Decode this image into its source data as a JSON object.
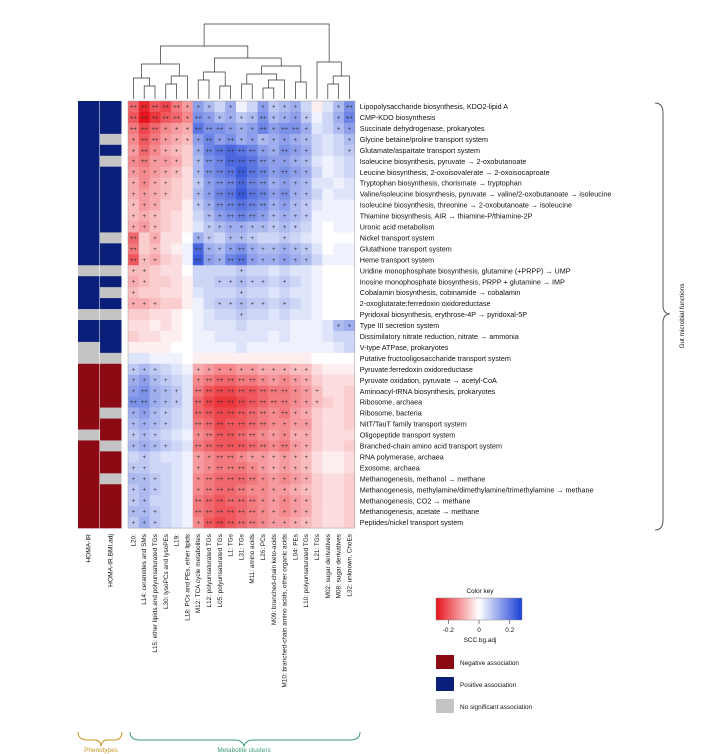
{
  "chart_data": {
    "type": "heatmap",
    "rows": [
      "Lipopolysaccharide biosynthesis, KDO2-lipid A",
      "CMP-KDO biosynthesis",
      "Succinate dehydrogenase, prokaryotes",
      "Glycine betaine/proline transport system",
      "Glutamate/aspartate transport system",
      "Isoleucine biosynthesis, pyruvate → 2-oxobutanoate",
      "Leucine biosynthesis, 2-oxoisovalerate → 2-oxoisocaproate",
      "Tryptophan biosynthesis, chorismate → tryptophan",
      "Valine/isoleucine biosynthesis, pyruvate → valine/2-oxobutanoate → isoleucine",
      "Isoleucine biosynthesis, threonine → 2-oxobutanoate → isoleucine",
      "Thiamine biosynthesis, AIR → thiamine-P/thiamine-2P",
      "Uronic acid metabolism",
      "Nickel transport system",
      "Glutathione transport system",
      "Heme transport system",
      "Uridine monophosphate biosynthesis, glutamine (+PRPP) → UMP",
      "Inosine monophosphate biosynthesis, PRPP + glutamine → IMP",
      "Cobalamin biosynthesis, cobinamide → cobalamin",
      "2-oxoglutarate:ferredoxin oxidoreductase",
      "Pyridoxal biosynthesis, erythrose-4P → pyridoxal-5P",
      "Type III secretion system",
      "Dissimilatory nitrate reduction, nitrate → ammonia",
      "V-type ATPase, prokaryotes",
      "Putative fructooligosaccharide transport system",
      "Pyruvate:ferredoxin oxidoreductase",
      "Pyruvate oxidation, pyruvate → acetyl-CoA",
      "Aminoacyl-tRNA biosynthesis, prokaryotes",
      "Ribosome, archaea",
      "Ribosome, bacteria",
      "NitT/TauT family transport system",
      "Oligopeptide transport system",
      "Branched-chain amino acid transport system",
      "RNA polymerase, archaea",
      "Exosome, archaea",
      "Methanogenesis, methanol → methane",
      "Methanogenesis, methylamine/dimethylamine/trimethylamine → methane",
      "Methanogenesis, CO2 → methane",
      "Methanogenesis, acetate → methane",
      "Peptides/nickel transport system"
    ],
    "columns": [
      "L20:",
      "L14: ceramides and SMs",
      "L15: ether lipids and polyunsaturated TGs",
      "L30: lysoPCs and lysoPEs",
      "L19:",
      "L18: PCs and PEs, ether lipids",
      "M12: TCA cycle metabolites",
      "L12: polyunsaturated TGs",
      "L05: polyunsaturated TGs",
      "L1: TGs",
      "L31: TGs",
      "M11: amino acids",
      "L26: PCs",
      "M09: branched-chain keto-acids",
      "M10: branched-chain amino acids, other organic acids",
      "L04: PEs",
      "L10: polyunsaturated TGs",
      "L21: TGs",
      "M02: sugar derivatives",
      "M08: sugar derivatives",
      "L32: unknown, ChoEs"
    ],
    "phenotypes": [
      "HOMA-IR",
      "HOMA-IR.BMI.adj"
    ],
    "phenotype_association": [
      [
        "Positive",
        "Positive"
      ],
      [
        "Positive",
        "Positive"
      ],
      [
        "Positive",
        "Positive"
      ],
      [
        "Positive",
        "No significant association"
      ],
      [
        "Positive",
        "Positive"
      ],
      [
        "Positive",
        "No significant association"
      ],
      [
        "Positive",
        "Positive"
      ],
      [
        "Positive",
        "Positive"
      ],
      [
        "Positive",
        "Positive"
      ],
      [
        "Positive",
        "Positive"
      ],
      [
        "Positive",
        "Positive"
      ],
      [
        "Positive",
        "Positive"
      ],
      [
        "Positive",
        "No significant association"
      ],
      [
        "Positive",
        "Positive"
      ],
      [
        "Positive",
        "Positive"
      ],
      [
        "No significant association",
        "No significant association"
      ],
      [
        "Positive",
        "Positive"
      ],
      [
        "Positive",
        "No significant association"
      ],
      [
        "Positive",
        "Positive"
      ],
      [
        "No significant association",
        "No significant association"
      ],
      [
        "Positive",
        "Positive"
      ],
      [
        "Positive",
        "Positive"
      ],
      [
        "No significant association",
        "Positive"
      ],
      [
        "No significant association",
        "No significant association"
      ],
      [
        "Negative",
        "Negative"
      ],
      [
        "Negative",
        "Negative"
      ],
      [
        "Negative",
        "Negative"
      ],
      [
        "Negative",
        "Negative"
      ],
      [
        "Negative",
        "No significant association"
      ],
      [
        "Negative",
        "Negative"
      ],
      [
        "No significant association",
        "Negative"
      ],
      [
        "Negative",
        "No significant association"
      ],
      [
        "Negative",
        "Negative"
      ],
      [
        "Negative",
        "Negative"
      ],
      [
        "Negative",
        "No significant association"
      ],
      [
        "Negative",
        "Negative"
      ],
      [
        "Negative",
        "Negative"
      ],
      [
        "Negative",
        "Negative"
      ],
      [
        "Negative",
        "Negative"
      ]
    ],
    "values_scc": [
      [
        -0.18,
        -0.26,
        -0.2,
        -0.22,
        -0.16,
        -0.12,
        0.14,
        0.1,
        0.06,
        0.12,
        0.02,
        0.06,
        0.14,
        0.08,
        0.1,
        0.12,
        0.06,
        -0.02,
        0.04,
        0.1,
        0.16
      ],
      [
        -0.2,
        -0.28,
        -0.24,
        -0.2,
        -0.18,
        -0.14,
        0.16,
        0.14,
        0.1,
        0.12,
        0.08,
        0.1,
        0.16,
        0.1,
        0.12,
        0.14,
        0.08,
        0.02,
        0.06,
        0.12,
        0.18
      ],
      [
        -0.16,
        -0.22,
        -0.18,
        -0.14,
        -0.12,
        -0.1,
        0.2,
        0.16,
        0.16,
        0.14,
        0.12,
        0.14,
        0.18,
        0.14,
        0.16,
        0.16,
        0.12,
        0.04,
        0.06,
        0.1,
        0.14
      ],
      [
        -0.14,
        -0.2,
        -0.16,
        -0.12,
        -0.1,
        -0.08,
        0.14,
        0.18,
        0.14,
        0.16,
        0.12,
        0.14,
        0.1,
        0.12,
        0.14,
        0.12,
        0.1,
        0.06,
        0.04,
        0.06,
        0.1
      ],
      [
        -0.12,
        -0.18,
        -0.14,
        -0.1,
        -0.08,
        -0.06,
        0.12,
        0.18,
        0.2,
        0.22,
        0.2,
        0.18,
        0.14,
        0.12,
        0.16,
        0.14,
        0.12,
        0.06,
        0.04,
        0.06,
        0.08
      ],
      [
        -0.14,
        -0.16,
        -0.12,
        -0.12,
        -0.1,
        -0.06,
        0.1,
        0.16,
        0.18,
        0.22,
        0.22,
        0.2,
        0.16,
        0.14,
        0.14,
        0.12,
        0.1,
        0.04,
        0.02,
        0.04,
        0.06
      ],
      [
        -0.12,
        -0.14,
        -0.12,
        -0.1,
        -0.08,
        -0.04,
        0.1,
        0.16,
        0.18,
        0.2,
        0.24,
        0.2,
        0.18,
        0.14,
        0.16,
        0.14,
        0.12,
        0.06,
        0.02,
        0.04,
        0.06
      ],
      [
        -0.1,
        -0.14,
        -0.1,
        -0.08,
        -0.06,
        -0.04,
        0.08,
        0.14,
        0.16,
        0.18,
        0.22,
        0.18,
        0.16,
        0.12,
        0.14,
        0.12,
        0.1,
        0.04,
        0.04,
        0.02,
        0.04
      ],
      [
        -0.1,
        -0.12,
        -0.1,
        -0.08,
        -0.06,
        -0.04,
        0.1,
        0.14,
        0.18,
        0.2,
        0.24,
        0.2,
        0.18,
        0.14,
        0.16,
        0.12,
        0.1,
        0.06,
        0.02,
        0.04,
        0.04
      ],
      [
        -0.08,
        -0.12,
        -0.1,
        -0.06,
        -0.06,
        -0.02,
        0.08,
        0.12,
        0.16,
        0.18,
        0.2,
        0.18,
        0.16,
        0.12,
        0.14,
        0.1,
        0.08,
        0.04,
        0.02,
        0.02,
        0.02
      ],
      [
        -0.08,
        -0.1,
        -0.08,
        -0.06,
        -0.04,
        -0.02,
        0.06,
        0.1,
        0.14,
        0.16,
        0.18,
        0.16,
        0.14,
        0.1,
        0.12,
        0.1,
        0.08,
        0.02,
        0.02,
        0.02,
        0.02
      ],
      [
        -0.1,
        -0.12,
        -0.08,
        -0.06,
        -0.04,
        -0.02,
        0.04,
        0.08,
        0.1,
        0.12,
        0.12,
        0.1,
        0.1,
        0.08,
        0.1,
        0.08,
        0.06,
        0.02,
        0.0,
        0.02,
        0.02
      ],
      [
        -0.18,
        -0.06,
        -0.1,
        -0.04,
        -0.04,
        0.0,
        0.12,
        0.08,
        0.06,
        0.1,
        0.1,
        0.08,
        0.06,
        0.06,
        0.08,
        0.06,
        0.04,
        0.02,
        0.0,
        0.0,
        0.0
      ],
      [
        -0.16,
        -0.06,
        -0.08,
        -0.04,
        -0.02,
        0.02,
        0.22,
        0.12,
        0.1,
        0.14,
        0.16,
        0.12,
        0.1,
        0.1,
        0.12,
        0.1,
        0.08,
        0.04,
        0.0,
        0.02,
        0.02
      ],
      [
        -0.2,
        -0.08,
        -0.1,
        -0.06,
        -0.04,
        0.02,
        0.24,
        0.14,
        0.12,
        0.18,
        0.2,
        0.14,
        0.12,
        0.12,
        0.14,
        0.12,
        0.1,
        0.06,
        0.02,
        0.02,
        0.02
      ],
      [
        -0.08,
        -0.08,
        -0.06,
        -0.04,
        -0.04,
        0.0,
        0.06,
        0.06,
        0.06,
        0.06,
        0.08,
        0.06,
        0.06,
        0.04,
        0.06,
        0.04,
        0.04,
        0.02,
        0.0,
        0.0,
        0.0
      ],
      [
        -0.1,
        -0.08,
        -0.06,
        -0.06,
        -0.04,
        -0.02,
        0.06,
        0.06,
        0.08,
        0.08,
        0.1,
        0.08,
        0.08,
        0.06,
        0.08,
        0.06,
        0.04,
        0.02,
        0.0,
        0.0,
        0.0
      ],
      [
        -0.08,
        -0.06,
        -0.06,
        -0.04,
        -0.04,
        -0.02,
        0.04,
        0.06,
        0.06,
        0.06,
        0.08,
        0.06,
        0.06,
        0.04,
        0.06,
        0.04,
        0.04,
        0.02,
        0.0,
        0.0,
        0.0
      ],
      [
        -0.1,
        -0.1,
        -0.08,
        -0.06,
        -0.06,
        -0.02,
        0.02,
        0.06,
        0.08,
        0.08,
        0.1,
        0.08,
        0.08,
        0.06,
        0.08,
        0.06,
        0.04,
        0.02,
        0.0,
        0.0,
        0.0
      ],
      [
        -0.06,
        -0.06,
        -0.04,
        -0.04,
        -0.02,
        0.0,
        0.02,
        0.04,
        0.06,
        0.06,
        0.08,
        0.06,
        0.06,
        0.04,
        0.06,
        0.04,
        0.04,
        0.02,
        0.0,
        0.0,
        0.0
      ],
      [
        -0.04,
        -0.04,
        -0.02,
        -0.04,
        -0.02,
        0.0,
        0.02,
        0.04,
        0.04,
        0.04,
        0.06,
        0.04,
        0.04,
        0.04,
        0.04,
        0.02,
        0.02,
        0.02,
        0.04,
        0.1,
        0.12
      ],
      [
        -0.06,
        -0.04,
        -0.04,
        -0.02,
        -0.02,
        0.0,
        0.02,
        0.02,
        0.04,
        0.04,
        0.04,
        0.04,
        0.04,
        0.02,
        0.04,
        0.02,
        0.02,
        0.02,
        0.04,
        0.06,
        0.06
      ],
      [
        -0.02,
        -0.02,
        -0.02,
        -0.02,
        0.0,
        0.0,
        0.02,
        0.02,
        0.02,
        0.02,
        0.04,
        0.02,
        0.02,
        0.02,
        0.02,
        0.02,
        0.02,
        0.02,
        0.02,
        0.04,
        0.06
      ],
      [
        0.04,
        0.04,
        0.02,
        0.02,
        0.02,
        0.0,
        -0.02,
        -0.02,
        -0.02,
        -0.02,
        -0.02,
        -0.02,
        -0.02,
        -0.02,
        -0.02,
        -0.02,
        -0.02,
        0.0,
        0.0,
        0.0,
        0.0
      ],
      [
        0.08,
        0.1,
        0.08,
        0.06,
        0.04,
        0.02,
        -0.1,
        -0.12,
        -0.14,
        -0.14,
        -0.12,
        -0.12,
        -0.1,
        -0.1,
        -0.1,
        -0.08,
        -0.08,
        -0.04,
        -0.02,
        -0.02,
        -0.02
      ],
      [
        0.12,
        0.14,
        0.1,
        0.08,
        0.06,
        0.04,
        -0.14,
        -0.16,
        -0.18,
        -0.18,
        -0.16,
        -0.16,
        -0.14,
        -0.12,
        -0.14,
        -0.12,
        -0.1,
        -0.06,
        -0.04,
        -0.04,
        -0.04
      ],
      [
        0.14,
        0.16,
        0.12,
        0.1,
        0.08,
        0.04,
        -0.16,
        -0.2,
        -0.22,
        -0.22,
        -0.2,
        -0.2,
        -0.18,
        -0.16,
        -0.16,
        -0.14,
        -0.12,
        -0.08,
        -0.04,
        -0.04,
        -0.06
      ],
      [
        0.16,
        0.16,
        0.12,
        0.1,
        0.08,
        0.04,
        -0.18,
        -0.22,
        -0.24,
        -0.24,
        -0.22,
        -0.2,
        -0.18,
        -0.16,
        -0.16,
        -0.14,
        -0.12,
        -0.08,
        -0.06,
        -0.04,
        -0.06
      ],
      [
        0.12,
        0.14,
        0.1,
        0.08,
        0.06,
        0.04,
        -0.18,
        -0.2,
        -0.22,
        -0.22,
        -0.2,
        -0.18,
        -0.16,
        -0.14,
        -0.16,
        -0.12,
        -0.1,
        -0.06,
        -0.04,
        -0.04,
        -0.06
      ],
      [
        0.1,
        0.12,
        0.1,
        0.08,
        0.06,
        0.04,
        -0.16,
        -0.18,
        -0.22,
        -0.2,
        -0.2,
        -0.18,
        -0.16,
        -0.14,
        -0.14,
        -0.12,
        -0.12,
        -0.06,
        -0.04,
        -0.04,
        -0.06
      ],
      [
        0.08,
        0.1,
        0.08,
        0.06,
        0.04,
        0.02,
        -0.14,
        -0.16,
        -0.2,
        -0.2,
        -0.18,
        -0.16,
        -0.14,
        -0.12,
        -0.14,
        -0.1,
        -0.1,
        -0.06,
        -0.04,
        -0.04,
        -0.04
      ],
      [
        0.1,
        0.12,
        0.1,
        0.08,
        0.06,
        0.04,
        -0.16,
        -0.18,
        -0.2,
        -0.2,
        -0.2,
        -0.18,
        -0.16,
        -0.14,
        -0.16,
        -0.12,
        -0.1,
        -0.06,
        -0.04,
        -0.04,
        -0.06
      ],
      [
        0.06,
        0.08,
        0.06,
        0.04,
        0.04,
        0.02,
        -0.12,
        -0.14,
        -0.16,
        -0.16,
        -0.14,
        -0.12,
        -0.12,
        -0.1,
        -0.12,
        -0.1,
        -0.08,
        -0.04,
        -0.02,
        -0.02,
        -0.04
      ],
      [
        0.08,
        0.08,
        0.06,
        0.06,
        0.04,
        0.02,
        -0.12,
        -0.14,
        -0.16,
        -0.16,
        -0.16,
        -0.14,
        -0.12,
        -0.1,
        -0.12,
        -0.1,
        -0.08,
        -0.04,
        -0.02,
        -0.02,
        -0.04
      ],
      [
        0.1,
        0.1,
        0.08,
        0.06,
        0.04,
        0.02,
        -0.14,
        -0.16,
        -0.18,
        -0.18,
        -0.18,
        -0.16,
        -0.14,
        -0.12,
        -0.14,
        -0.12,
        -0.1,
        -0.06,
        -0.04,
        -0.04,
        -0.06
      ],
      [
        0.08,
        0.1,
        0.08,
        0.06,
        0.04,
        0.02,
        -0.14,
        -0.16,
        -0.18,
        -0.18,
        -0.16,
        -0.14,
        -0.14,
        -0.12,
        -0.12,
        -0.1,
        -0.08,
        -0.06,
        -0.04,
        -0.04,
        -0.06
      ],
      [
        0.08,
        0.1,
        0.06,
        0.06,
        0.04,
        0.02,
        -0.16,
        -0.18,
        -0.2,
        -0.18,
        -0.18,
        -0.16,
        -0.14,
        -0.12,
        -0.14,
        -0.12,
        -0.1,
        -0.06,
        -0.04,
        -0.04,
        -0.06
      ],
      [
        0.1,
        0.1,
        0.08,
        0.06,
        0.04,
        0.02,
        -0.16,
        -0.18,
        -0.2,
        -0.2,
        -0.18,
        -0.16,
        -0.14,
        -0.12,
        -0.14,
        -0.12,
        -0.1,
        -0.06,
        -0.04,
        -0.04,
        -0.06
      ],
      [
        0.08,
        0.12,
        0.08,
        0.06,
        0.04,
        0.02,
        -0.14,
        -0.2,
        -0.22,
        -0.2,
        -0.18,
        -0.16,
        -0.14,
        -0.12,
        -0.12,
        -0.1,
        -0.08,
        -0.06,
        -0.04,
        -0.04,
        -0.06
      ]
    ],
    "significance_rule": {
      "double_star_above_abs": 0.15,
      "single_star_above_abs": 0.06
    },
    "significance_marks": {
      "single": "+",
      "double": "++"
    },
    "color_key": {
      "title": "Color key",
      "axis_label": "SCC.bg.adj",
      "ticks": [
        "-0.2",
        "0",
        "0.2"
      ],
      "range": [
        -0.28,
        0.28
      ],
      "negative_color": "#e8141c",
      "neutral_color": "#ffffff",
      "positive_color": "#1a3fd6"
    },
    "legend_items": [
      {
        "label": "Negative association",
        "color": "#8b0a14"
      },
      {
        "label": "Positive association",
        "color": "#0a1f7a"
      },
      {
        "label": "No significant association",
        "color": "#c4c4c4"
      }
    ],
    "right_axis_label": "Gut microbial functions",
    "bottom_groups": [
      {
        "label": "Phenotypes",
        "color": "#c8941e"
      },
      {
        "label": "Metabolite clusters",
        "color": "#3a9a6e"
      }
    ]
  }
}
